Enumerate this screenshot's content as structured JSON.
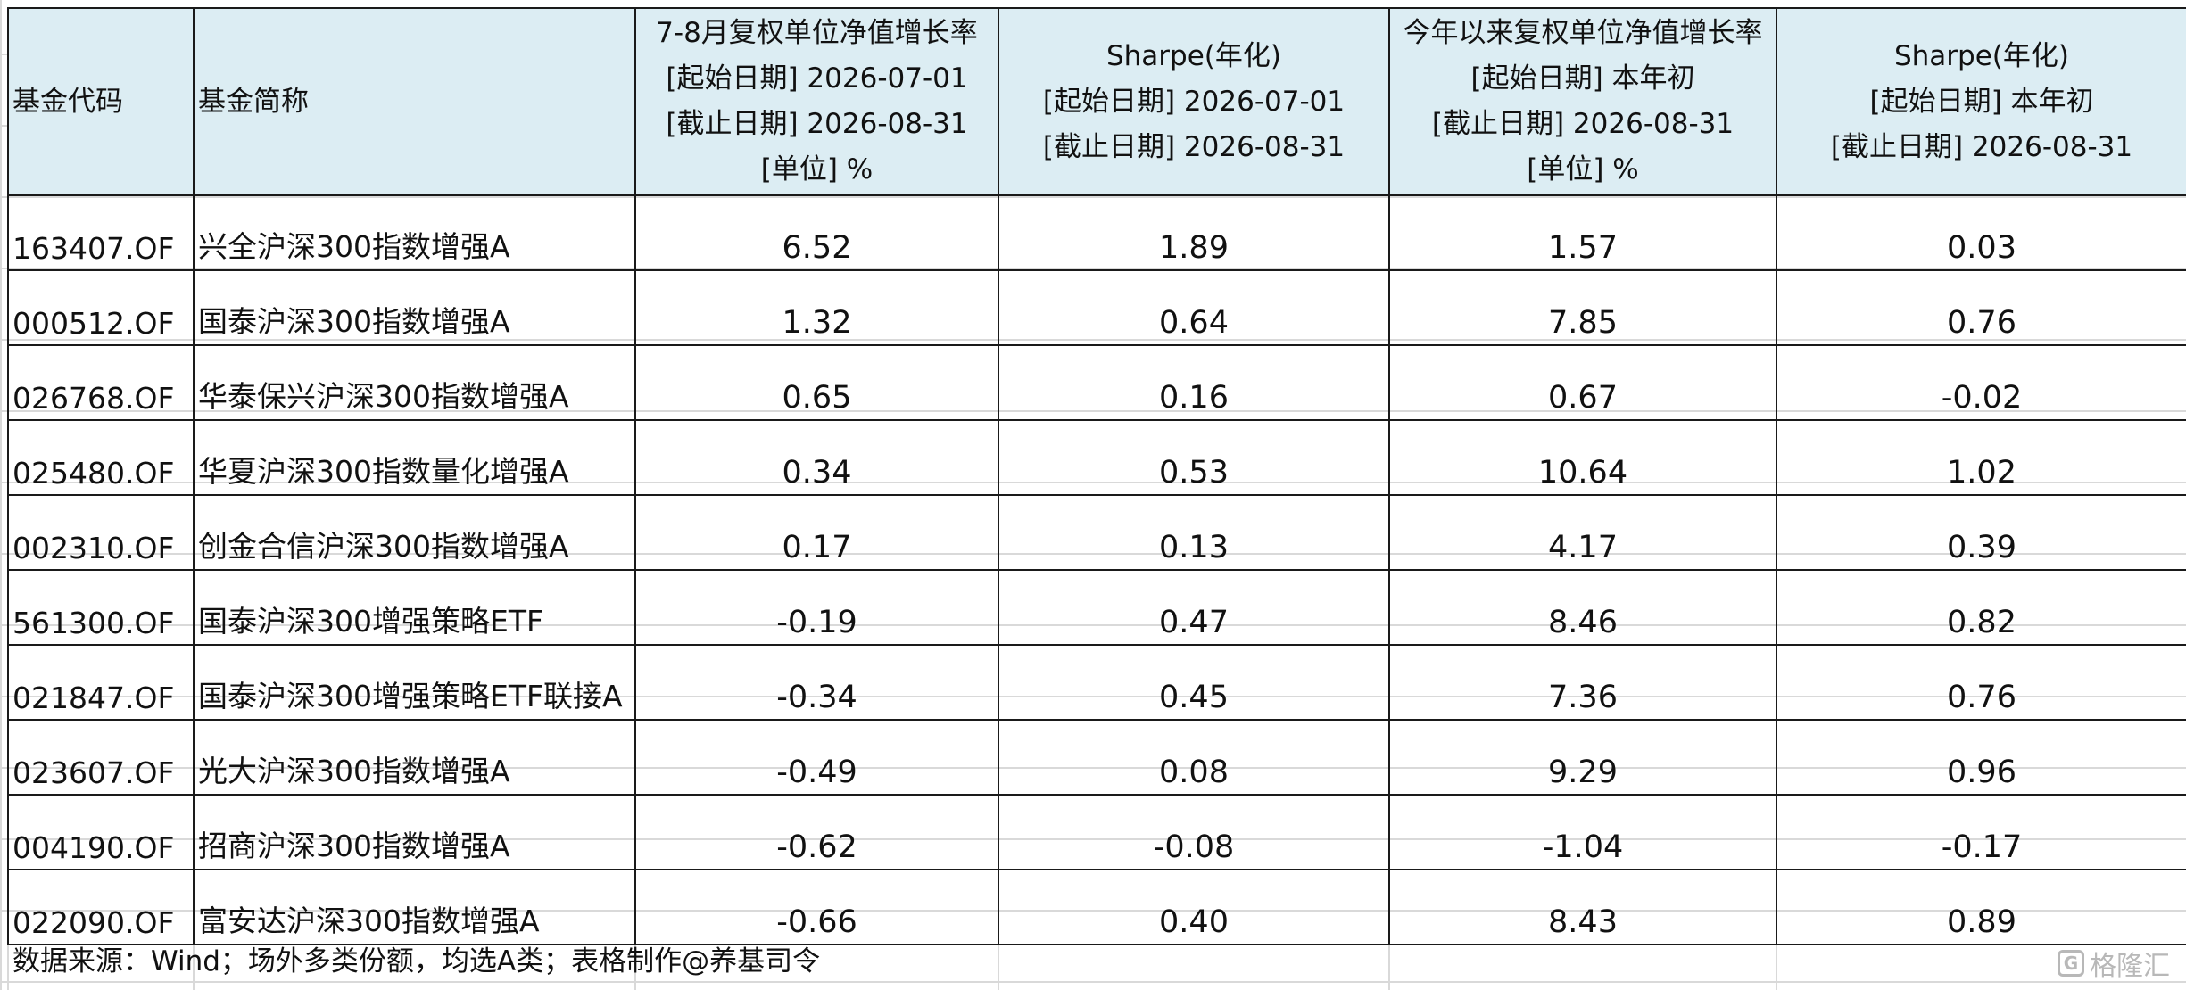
{
  "table": {
    "headers": [
      {
        "lines": [
          "基金代码"
        ]
      },
      {
        "lines": [
          "基金简称"
        ]
      },
      {
        "lines": [
          "7-8月复权单位净值增长率",
          "[起始日期] 2026-07-01",
          "[截止日期] 2026-08-31",
          "[单位] %"
        ]
      },
      {
        "lines": [
          "Sharpe(年化)",
          "[起始日期] 2026-07-01",
          "[截止日期] 2026-08-31"
        ]
      },
      {
        "lines": [
          "今年以来复权单位净值增长率",
          "[起始日期] 本年初",
          "[截止日期] 2026-08-31",
          "[单位] %"
        ]
      },
      {
        "lines": [
          "Sharpe(年化)",
          "[起始日期] 本年初",
          "[截止日期] 2026-08-31"
        ]
      }
    ],
    "rows": [
      [
        "163407.OF",
        "兴全沪深300指数增强A",
        "6.52",
        "1.89",
        "1.57",
        "0.03"
      ],
      [
        "000512.OF",
        "国泰沪深300指数增强A",
        "1.32",
        "0.64",
        "7.85",
        "0.76"
      ],
      [
        "026768.OF",
        "华泰保兴沪深300指数增强A",
        "0.65",
        "0.16",
        "0.67",
        "-0.02"
      ],
      [
        "025480.OF",
        "华夏沪深300指数量化增强A",
        "0.34",
        "0.53",
        "10.64",
        "1.02"
      ],
      [
        "002310.OF",
        "创金合信沪深300指数增强A",
        "0.17",
        "0.13",
        "4.17",
        "0.39"
      ],
      [
        "561300.OF",
        "国泰沪深300增强策略ETF",
        "-0.19",
        "0.47",
        "8.46",
        "0.82"
      ],
      [
        "021847.OF",
        "国泰沪深300增强策略ETF联接A",
        "-0.34",
        "0.45",
        "7.36",
        "0.76"
      ],
      [
        "023607.OF",
        "光大沪深300指数增强A",
        "-0.49",
        "0.08",
        "9.29",
        "0.96"
      ],
      [
        "004190.OF",
        "招商沪深300指数增强A",
        "-0.62",
        "-0.08",
        "-1.04",
        "-0.17"
      ],
      [
        "022090.OF",
        "富安达沪深300指数增强A",
        "-0.66",
        "0.40",
        "8.43",
        "0.89"
      ]
    ]
  },
  "footer": {
    "note": "数据来源：Wind；场外多类份额，均选A类；表格制作@养基司令"
  },
  "watermark": {
    "icon": "gelonghui-logo-icon",
    "text": "格隆汇"
  },
  "colors": {
    "header_bg": "#dcedf3",
    "border": "#1a1a1a",
    "watermark": "#b8b8b8"
  }
}
